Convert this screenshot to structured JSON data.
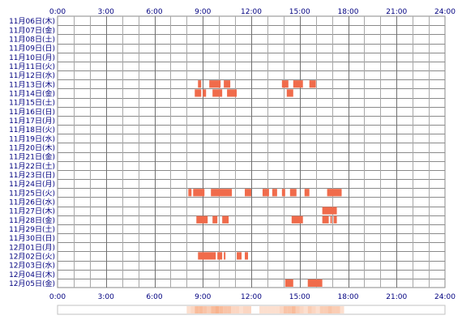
{
  "chart_data": {
    "type": "heatmap",
    "title": "",
    "xlabel": "",
    "ylabel": "",
    "x_ticks": [
      "0:00",
      "3:00",
      "6:00",
      "9:00",
      "12:00",
      "15:00",
      "18:00",
      "21:00",
      "24:00"
    ],
    "x_range_hours": [
      0,
      24
    ],
    "grid": true,
    "bar_color": "#f06b4b",
    "grid_color": "#8a8a8a",
    "label_color": "#000080",
    "summary_color": "#f6a072",
    "days": [
      "11月06日(木)",
      "11月07日(金)",
      "11月08日(土)",
      "11月09日(日)",
      "11月10日(月)",
      "11月11日(火)",
      "11月12日(水)",
      "11月13日(木)",
      "11月14日(金)",
      "11月15日(土)",
      "11月16日(日)",
      "11月17日(月)",
      "11月18日(火)",
      "11月19日(水)",
      "11月20日(木)",
      "11月21日(金)",
      "11月22日(土)",
      "11月23日(日)",
      "11月24日(月)",
      "11月25日(火)",
      "11月26日(水)",
      "11月27日(木)",
      "11月28日(金)",
      "11月29日(土)",
      "11月30日(日)",
      "12月01日(月)",
      "12月02日(火)",
      "12月03日(水)",
      "12月04日(木)",
      "12月05日(金)"
    ],
    "activity": [
      {
        "day": "11月13日(木)",
        "start": 8.7,
        "end": 8.9
      },
      {
        "day": "11月13日(木)",
        "start": 9.4,
        "end": 10.1
      },
      {
        "day": "11月13日(木)",
        "start": 10.3,
        "end": 10.7
      },
      {
        "day": "11月13日(木)",
        "start": 13.9,
        "end": 14.3
      },
      {
        "day": "11月13日(木)",
        "start": 14.6,
        "end": 15.2
      },
      {
        "day": "11月13日(木)",
        "start": 15.6,
        "end": 16.0
      },
      {
        "day": "11月14日(金)",
        "start": 8.5,
        "end": 8.9
      },
      {
        "day": "11月14日(金)",
        "start": 9.0,
        "end": 9.2
      },
      {
        "day": "11月14日(金)",
        "start": 9.6,
        "end": 10.0
      },
      {
        "day": "11月14日(金)",
        "start": 10.0,
        "end": 10.2
      },
      {
        "day": "11月14日(金)",
        "start": 10.5,
        "end": 11.1
      },
      {
        "day": "11月14日(金)",
        "start": 14.2,
        "end": 14.6
      },
      {
        "day": "11月25日(火)",
        "start": 8.1,
        "end": 8.3
      },
      {
        "day": "11月25日(火)",
        "start": 8.4,
        "end": 9.1
      },
      {
        "day": "11月25日(火)",
        "start": 9.5,
        "end": 10.8
      },
      {
        "day": "11月25日(火)",
        "start": 11.6,
        "end": 12.0
      },
      {
        "day": "11月25日(火)",
        "start": 12.7,
        "end": 13.1
      },
      {
        "day": "11月25日(火)",
        "start": 13.3,
        "end": 13.6
      },
      {
        "day": "11月25日(火)",
        "start": 13.9,
        "end": 14.1
      },
      {
        "day": "11月25日(火)",
        "start": 14.4,
        "end": 14.8
      },
      {
        "day": "11月25日(火)",
        "start": 15.3,
        "end": 15.6
      },
      {
        "day": "11月25日(火)",
        "start": 16.7,
        "end": 17.6
      },
      {
        "day": "11月27日(木)",
        "start": 16.4,
        "end": 17.3
      },
      {
        "day": "11月28日(金)",
        "start": 8.6,
        "end": 9.3
      },
      {
        "day": "11月28日(金)",
        "start": 9.6,
        "end": 9.9
      },
      {
        "day": "11月28日(金)",
        "start": 10.2,
        "end": 10.6
      },
      {
        "day": "11月28日(金)",
        "start": 14.5,
        "end": 15.2
      },
      {
        "day": "11月28日(金)",
        "start": 16.4,
        "end": 16.8
      },
      {
        "day": "11月28日(金)",
        "start": 16.9,
        "end": 17.0
      },
      {
        "day": "11月28日(金)",
        "start": 17.1,
        "end": 17.3
      },
      {
        "day": "12月02日(火)",
        "start": 8.7,
        "end": 9.8
      },
      {
        "day": "12月02日(火)",
        "start": 9.9,
        "end": 10.2
      },
      {
        "day": "12月02日(火)",
        "start": 10.3,
        "end": 10.4
      },
      {
        "day": "12月02日(火)",
        "start": 11.1,
        "end": 11.4
      },
      {
        "day": "12月02日(火)",
        "start": 11.6,
        "end": 11.8
      },
      {
        "day": "12月05日(金)",
        "start": 14.1,
        "end": 14.6
      },
      {
        "day": "12月05日(金)",
        "start": 15.5,
        "end": 16.4
      }
    ]
  }
}
